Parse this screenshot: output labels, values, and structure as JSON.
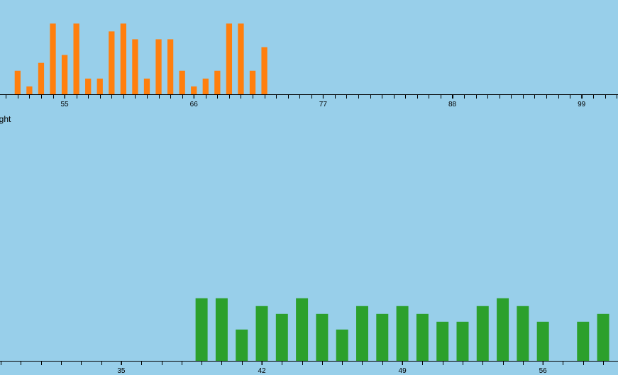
{
  "chart_data": [
    {
      "type": "bar",
      "color": "#ff7f0e",
      "x": [
        51,
        52,
        53,
        54,
        55,
        56,
        57,
        58,
        59,
        60,
        61,
        62,
        63,
        64,
        65,
        66,
        67,
        68,
        69,
        70,
        71,
        72
      ],
      "values": [
        3,
        1,
        4,
        9,
        5,
        9,
        2,
        2,
        8,
        9,
        7,
        2,
        7,
        7,
        3,
        1,
        2,
        3,
        9,
        9,
        3,
        6
      ],
      "xlim": [
        49.5,
        102.1
      ],
      "ylim": [
        0,
        12
      ],
      "xticks": [
        55,
        66,
        77,
        88,
        99
      ],
      "minor_xticks": [
        50,
        51,
        52,
        53,
        54,
        55,
        56,
        57,
        58,
        59,
        60,
        61,
        62,
        63,
        64,
        65,
        66,
        67,
        68,
        69,
        70,
        71,
        72,
        73,
        74,
        75,
        76,
        77,
        78,
        79,
        80,
        81,
        82,
        83,
        84,
        85,
        86,
        87,
        88,
        89,
        90,
        91,
        92,
        93,
        94,
        95,
        96,
        97,
        98,
        99,
        100,
        101,
        102
      ]
    },
    {
      "type": "bar",
      "color": "#2ca02c",
      "title": "ight",
      "x": [
        39,
        40,
        41,
        42,
        43,
        44,
        45,
        46,
        47,
        48,
        49,
        50,
        51,
        52,
        53,
        54,
        55,
        56,
        57,
        58,
        59
      ],
      "values": [
        8,
        8,
        4,
        7,
        6,
        8,
        6,
        4,
        7,
        6,
        7,
        6,
        5,
        5,
        7,
        8,
        7,
        5,
        0,
        5,
        6
      ],
      "xlim": [
        28.96,
        59.74
      ],
      "ylim": [
        0,
        30
      ],
      "xticks": [
        35,
        42,
        49,
        56
      ],
      "minor_xticks": [
        29,
        30,
        31,
        32,
        33,
        34,
        35,
        36,
        37,
        38,
        39,
        40,
        41,
        42,
        43,
        44,
        45,
        46,
        47,
        48,
        49,
        50,
        51,
        52,
        53,
        54,
        55,
        56,
        57,
        58,
        59
      ]
    }
  ]
}
